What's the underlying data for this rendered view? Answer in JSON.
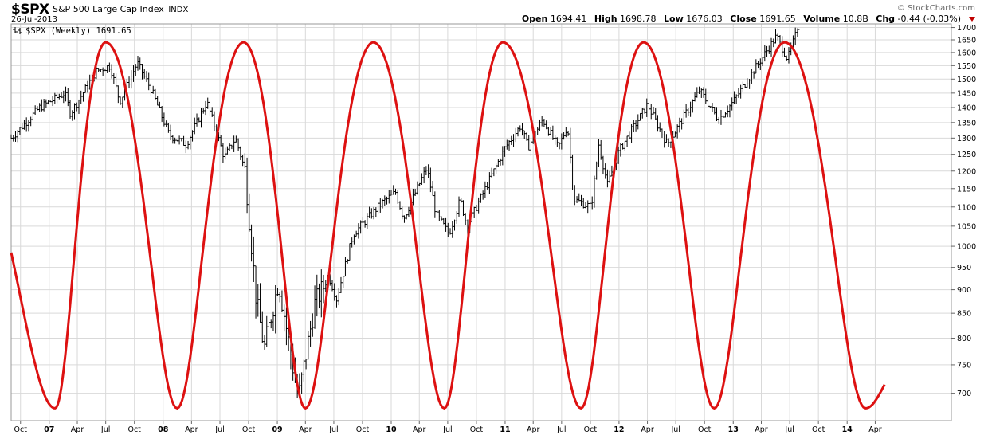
{
  "header": {
    "symbol": "$SPX",
    "description": "S&P 500 Large Cap Index",
    "exchange": "INDX",
    "date": "26-Jul-2013",
    "brand": "© StockCharts.com",
    "open_label": "Open",
    "open_value": "1694.41",
    "high_label": "High",
    "high_value": "1698.78",
    "low_label": "Low",
    "low_value": "1676.03",
    "close_label": "Close",
    "close_value": "1691.65",
    "volume_label": "Volume",
    "volume_value": "10.8B",
    "chg_label": "Chg",
    "chg_value": "-0.44 (-0.03%)"
  },
  "colors": {
    "price_bars": "#000000",
    "cycle_line": "#dd1111",
    "grid": "#d9d9d9",
    "chg_arrow": "#c00000"
  },
  "chart_data": {
    "type": "line",
    "legend": "$SPX (Weekly) 1691.65",
    "legend_position": "top-left",
    "grid": true,
    "y_scale": "log",
    "y_axis_side": "right",
    "ylim": [
      655,
      1715
    ],
    "y_ticks": [
      700,
      750,
      800,
      850,
      900,
      950,
      1000,
      1050,
      1100,
      1150,
      1200,
      1250,
      1300,
      1350,
      1400,
      1450,
      1500,
      1550,
      1600,
      1650,
      1700
    ],
    "xlim": [
      "2006-09-01",
      "2014-12-01"
    ],
    "x_ticks": [
      {
        "date": "2006-10-01",
        "label": "Oct"
      },
      {
        "date": "2007-01-01",
        "label": "07",
        "bold": true
      },
      {
        "date": "2007-04-01",
        "label": "Apr"
      },
      {
        "date": "2007-07-01",
        "label": "Jul"
      },
      {
        "date": "2007-10-01",
        "label": "Oct"
      },
      {
        "date": "2008-01-01",
        "label": "08",
        "bold": true
      },
      {
        "date": "2008-04-01",
        "label": "Apr"
      },
      {
        "date": "2008-07-01",
        "label": "Jul"
      },
      {
        "date": "2008-10-01",
        "label": "Oct"
      },
      {
        "date": "2009-01-01",
        "label": "09",
        "bold": true
      },
      {
        "date": "2009-04-01",
        "label": "Apr"
      },
      {
        "date": "2009-07-01",
        "label": "Jul"
      },
      {
        "date": "2009-10-01",
        "label": "Oct"
      },
      {
        "date": "2010-01-01",
        "label": "10",
        "bold": true
      },
      {
        "date": "2010-04-01",
        "label": "Apr"
      },
      {
        "date": "2010-07-01",
        "label": "Jul"
      },
      {
        "date": "2010-10-01",
        "label": "Oct"
      },
      {
        "date": "2011-01-01",
        "label": "11",
        "bold": true
      },
      {
        "date": "2011-04-01",
        "label": "Apr"
      },
      {
        "date": "2011-07-01",
        "label": "Jul"
      },
      {
        "date": "2011-10-01",
        "label": "Oct"
      },
      {
        "date": "2012-01-01",
        "label": "12",
        "bold": true
      },
      {
        "date": "2012-04-01",
        "label": "Apr"
      },
      {
        "date": "2012-07-01",
        "label": "Jul"
      },
      {
        "date": "2012-10-01",
        "label": "Oct"
      },
      {
        "date": "2013-01-01",
        "label": "13",
        "bold": true
      },
      {
        "date": "2013-04-01",
        "label": "Apr"
      },
      {
        "date": "2013-07-01",
        "label": "Jul"
      },
      {
        "date": "2013-10-01",
        "label": "Oct"
      },
      {
        "date": "2014-01-01",
        "label": "14",
        "bold": true
      },
      {
        "date": "2014-04-01",
        "label": "Apr"
      }
    ],
    "price_points": [
      {
        "date": "2006-09-01",
        "close": 1300
      },
      {
        "date": "2006-12-01",
        "close": 1400
      },
      {
        "date": "2007-02-20",
        "close": 1450
      },
      {
        "date": "2007-03-10",
        "close": 1380
      },
      {
        "date": "2007-06-01",
        "close": 1530
      },
      {
        "date": "2007-07-15",
        "close": 1550
      },
      {
        "date": "2007-08-15",
        "close": 1420
      },
      {
        "date": "2007-10-10",
        "close": 1560
      },
      {
        "date": "2007-11-25",
        "close": 1460
      },
      {
        "date": "2008-01-20",
        "close": 1310
      },
      {
        "date": "2008-03-15",
        "close": 1280
      },
      {
        "date": "2008-05-20",
        "close": 1420
      },
      {
        "date": "2008-07-15",
        "close": 1240
      },
      {
        "date": "2008-08-20",
        "close": 1300
      },
      {
        "date": "2008-09-20",
        "close": 1200
      },
      {
        "date": "2008-10-25",
        "close": 880
      },
      {
        "date": "2008-11-20",
        "close": 780
      },
      {
        "date": "2009-01-05",
        "close": 920
      },
      {
        "date": "2009-03-09",
        "close": 690
      },
      {
        "date": "2009-05-01",
        "close": 870
      },
      {
        "date": "2009-06-15",
        "close": 930
      },
      {
        "date": "2009-07-10",
        "close": 880
      },
      {
        "date": "2009-09-01",
        "close": 1030
      },
      {
        "date": "2009-12-01",
        "close": 1110
      },
      {
        "date": "2010-01-15",
        "close": 1140
      },
      {
        "date": "2010-02-10",
        "close": 1070
      },
      {
        "date": "2010-04-25",
        "close": 1210
      },
      {
        "date": "2010-05-25",
        "close": 1080
      },
      {
        "date": "2010-07-05",
        "close": 1030
      },
      {
        "date": "2010-08-10",
        "close": 1120
      },
      {
        "date": "2010-09-01",
        "close": 1050
      },
      {
        "date": "2011-01-01",
        "close": 1270
      },
      {
        "date": "2011-02-20",
        "close": 1340
      },
      {
        "date": "2011-03-15",
        "close": 1270
      },
      {
        "date": "2011-05-01",
        "close": 1360
      },
      {
        "date": "2011-06-20",
        "close": 1270
      },
      {
        "date": "2011-07-20",
        "close": 1340
      },
      {
        "date": "2011-08-10",
        "close": 1120
      },
      {
        "date": "2011-10-04",
        "close": 1100
      },
      {
        "date": "2011-10-28",
        "close": 1280
      },
      {
        "date": "2011-11-25",
        "close": 1160
      },
      {
        "date": "2012-01-01",
        "close": 1260
      },
      {
        "date": "2012-04-01",
        "close": 1410
      },
      {
        "date": "2012-06-04",
        "close": 1280
      },
      {
        "date": "2012-09-15",
        "close": 1460
      },
      {
        "date": "2012-11-15",
        "close": 1360
      },
      {
        "date": "2013-01-01",
        "close": 1420
      },
      {
        "date": "2013-03-01",
        "close": 1520
      },
      {
        "date": "2013-05-20",
        "close": 1665
      },
      {
        "date": "2013-06-24",
        "close": 1575
      },
      {
        "date": "2013-07-26",
        "close": 1691.65
      }
    ],
    "cycle_line": {
      "name": "",
      "peaks": [
        "2007-07-01",
        "2008-09-15",
        "2009-11-05",
        "2010-12-25",
        "2012-03-20",
        "2013-06-15"
      ],
      "troughs": [
        "2007-01-20",
        "2008-02-15",
        "2009-04-01",
        "2010-06-20",
        "2011-09-01",
        "2012-11-01",
        "2014-03-01"
      ],
      "high": 1640,
      "low": 675,
      "start": {
        "date": "2006-09-01",
        "value": 985
      },
      "end": {
        "date": "2014-05-01",
        "value": 715
      }
    }
  }
}
